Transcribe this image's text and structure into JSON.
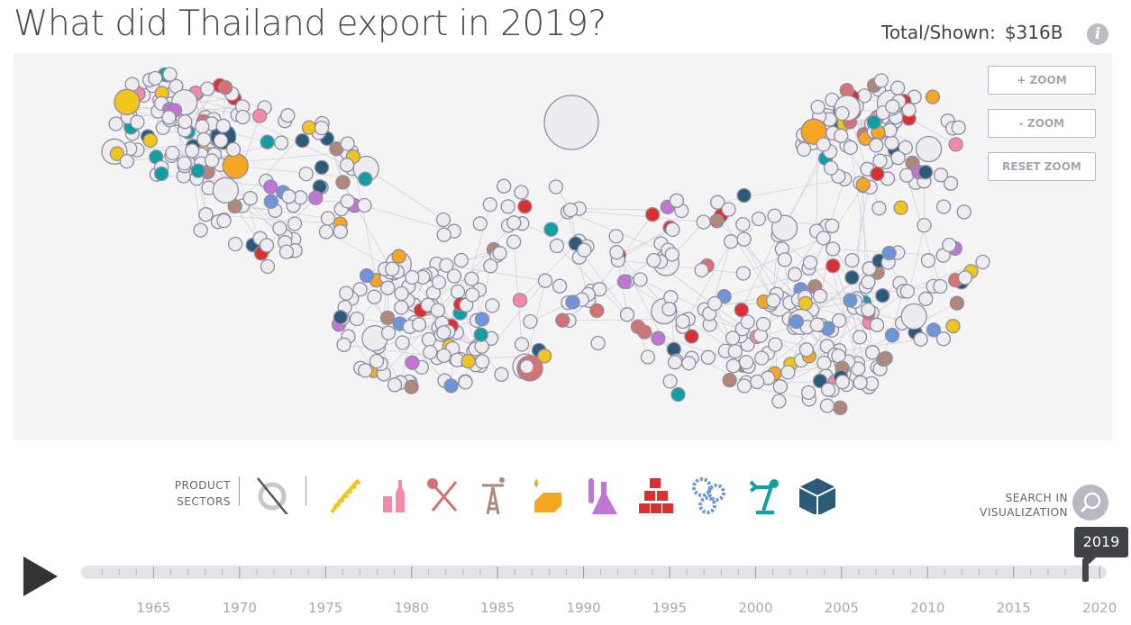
{
  "header": {
    "title": "What did Thailand export in 2019?",
    "total_label": "Total/Shown:",
    "total_value": "$316B",
    "info_icon": "info-icon"
  },
  "zoom": {
    "zoom_in": "+ ZOOM",
    "zoom_out": "- ZOOM",
    "reset": "RESET ZOOM"
  },
  "sectors": {
    "label_line1": "PRODUCT",
    "label_line2": "SECTORS",
    "items": [
      {
        "name": "services",
        "icon": "services-icon",
        "color": "#c8c8c8"
      },
      {
        "name": "agriculture",
        "icon": "wheat-icon",
        "color": "#f2c51b"
      },
      {
        "name": "textiles",
        "icon": "bottle-icon",
        "color": "#f48aa8"
      },
      {
        "name": "stone",
        "icon": "pick-shovel-icon",
        "color": "#d47370"
      },
      {
        "name": "minerals",
        "icon": "oil-derrick-icon",
        "color": "#b08878"
      },
      {
        "name": "chemicals",
        "icon": "butter-drop-icon",
        "color": "#f5a623"
      },
      {
        "name": "vehicles",
        "icon": "flask-icon",
        "color": "#c276d4"
      },
      {
        "name": "metals",
        "icon": "bricks-icon",
        "color": "#dc3030"
      },
      {
        "name": "machinery",
        "icon": "gears-icon",
        "color": "#6e95d8"
      },
      {
        "name": "electronics",
        "icon": "robot-arm-icon",
        "color": "#0ea0a2"
      },
      {
        "name": "other",
        "icon": "box-icon",
        "color": "#2c5b7a"
      }
    ]
  },
  "search": {
    "line1": "SEARCH IN",
    "line2": "VISUALIZATION"
  },
  "timeline": {
    "selected_year": "2019",
    "start_year": 1961,
    "end_year": 2020,
    "labels": [
      "1965",
      "1970",
      "1975",
      "1980",
      "1985",
      "1990",
      "1995",
      "2000",
      "2005",
      "2010",
      "2015",
      "2020"
    ]
  },
  "network": {
    "node_fill": "#ededf0",
    "node_stroke": "#8f8da4",
    "edge": "#c9c9d2"
  }
}
